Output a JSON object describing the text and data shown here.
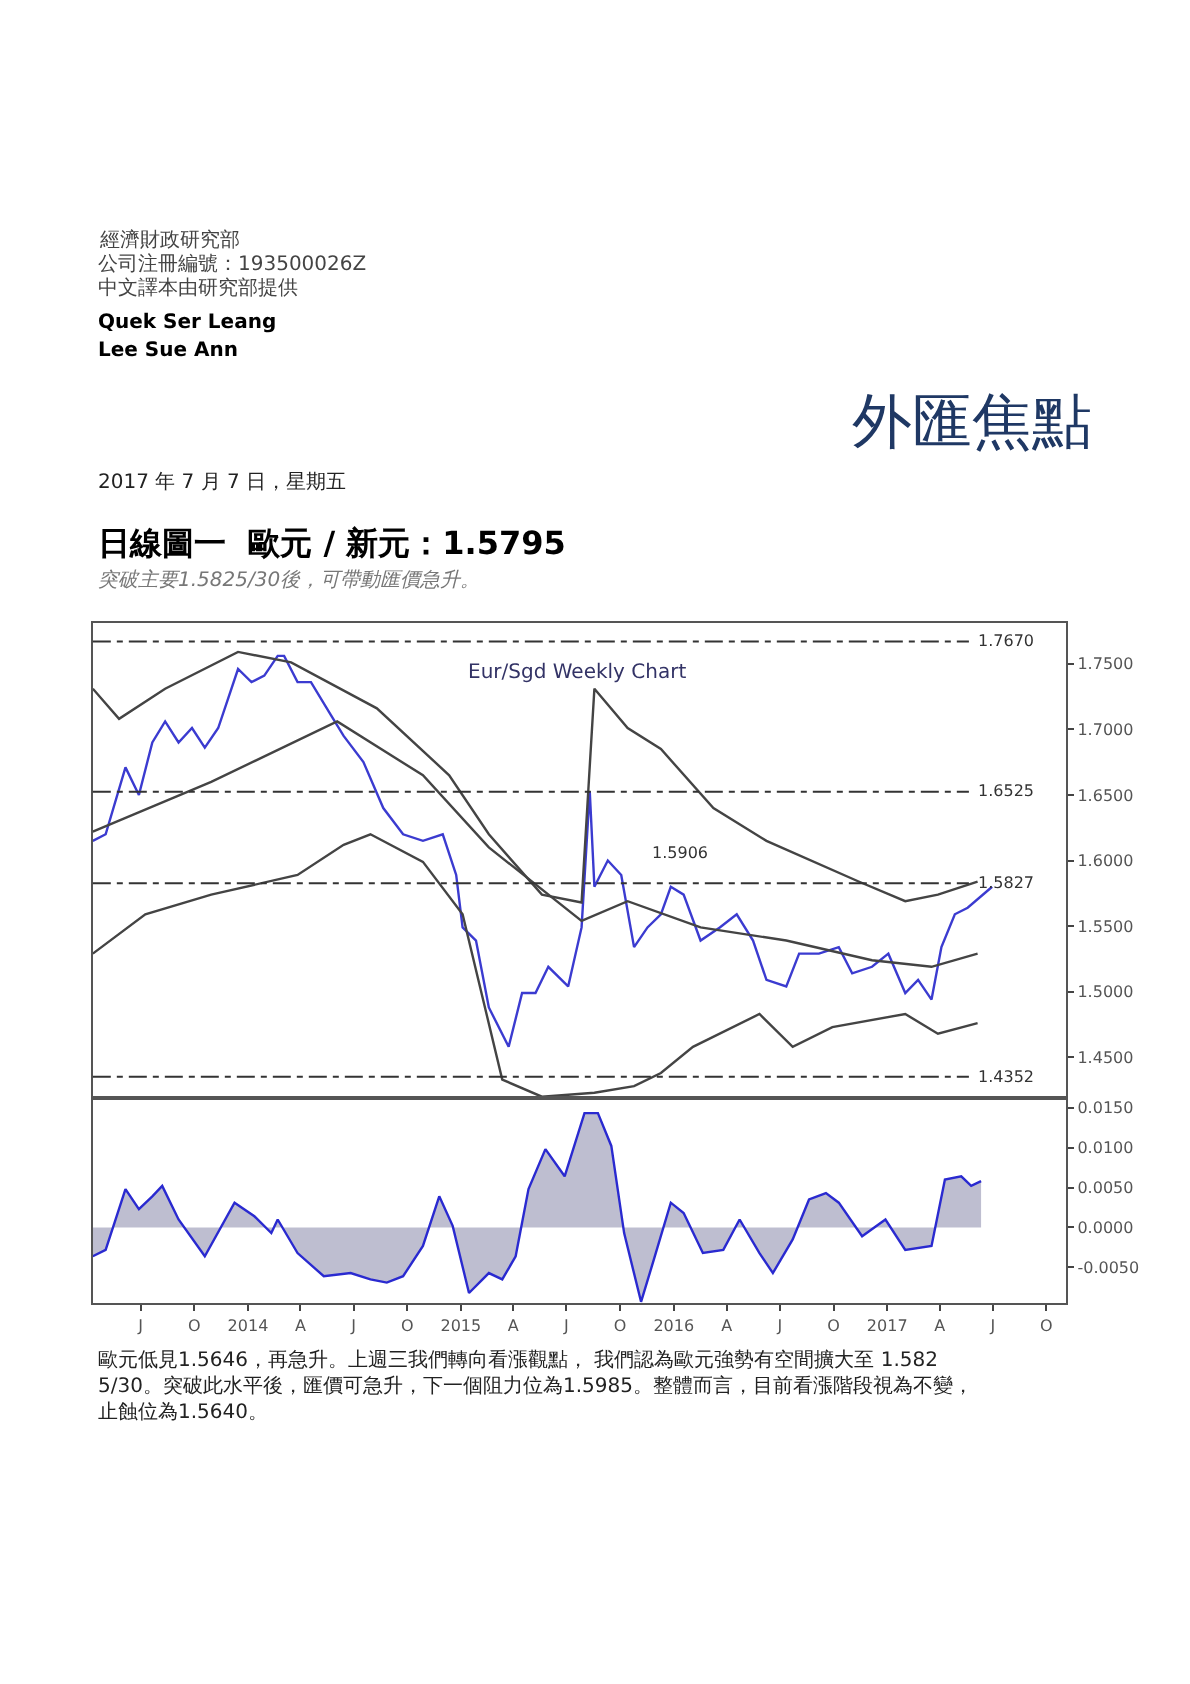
{
  "chart_data": [
    {
      "type": "line",
      "title": "日線圖一  歐元 / 新元：1.5795",
      "subtitle": "突破主要1.5825/30後，可帶動匯價急升。",
      "annotations": [
        "經濟財政研究部",
        "公司注冊編號：193500026Z",
        "中文譯本由研究部提供",
        "Quek Ser Leang",
        "Lee Sue Ann",
        "外匯焦點",
        "2017 年 7 月 7 日，星期五",
        "Eur/Sgd Weekly Chart",
        "歐元低見1.5646，再急升。上週三我們轉向看漲觀點， 我們認為歐元強勢有空間擴大至 1.5825/30。突破此水平後，匯價可急升，下一個阻力位為1.5985。整體而言，目前看漲階段視為不變，止蝕位為1.5640。",
        "1.5906"
      ],
      "series": [
        {
          "color": "#3b3bd0",
          "x": [
            "2013-04-10",
            "2013-05-02",
            "2013-06-05",
            "2013-06-28",
            "2013-07-21",
            "2013-08-12",
            "2013-09-04",
            "2013-09-27",
            "2013-10-19",
            "2013-11-11",
            "2013-12-15",
            "2014-01-07",
            "2014-01-29",
            "2014-02-21",
            "2014-03-04",
            "2014-03-27",
            "2014-04-19",
            "2014-05-23",
            "2014-06-14",
            "2014-07-18",
            "2014-08-21",
            "2014-09-24",
            "2014-10-28",
            "2014-12-01",
            "2014-12-24",
            "2015-01-04",
            "2015-01-27",
            "2015-02-18",
            "2015-03-24",
            "2015-04-16",
            "2015-05-09",
            "2015-05-31",
            "2015-07-04",
            "2015-07-27",
            "2015-08-10",
            "2015-08-18",
            "2015-09-10",
            "2015-10-03",
            "2015-10-25",
            "2015-11-17",
            "2015-12-10",
            "2015-12-27",
            "2016-01-18",
            "2016-02-16",
            "2016-03-20",
            "2016-04-18",
            "2016-05-16",
            "2016-06-08",
            "2016-07-12",
            "2016-08-03",
            "2016-09-06",
            "2016-10-10",
            "2016-11-02",
            "2016-12-06",
            "2017-01-03",
            "2017-02-01",
            "2017-02-23",
            "2017-03-18",
            "2017-04-04",
            "2017-04-27",
            "2017-05-19",
            "2017-06-30"
          ],
          "values": [
            1.615,
            1.62,
            1.671,
            1.65,
            1.69,
            1.706,
            1.69,
            1.701,
            1.686,
            1.701,
            1.746,
            1.736,
            1.741,
            1.756,
            1.756,
            1.736,
            1.736,
            1.711,
            1.695,
            1.675,
            1.64,
            1.62,
            1.615,
            1.62,
            1.589,
            1.549,
            1.539,
            1.488,
            1.458,
            1.499,
            1.499,
            1.519,
            1.504,
            1.549,
            1.653,
            1.58,
            1.6,
            1.589,
            1.534,
            1.549,
            1.559,
            1.58,
            1.574,
            1.539,
            1.549,
            1.559,
            1.539,
            1.509,
            1.504,
            1.529,
            1.529,
            1.534,
            1.514,
            1.519,
            1.529,
            1.499,
            1.509,
            1.494,
            1.534,
            1.559,
            1.564,
            1.58
          ]
        },
        {
          "color": "#444444",
          "x": [
            "2013-04-10",
            "2013-05-25",
            "2013-08-12",
            "2013-12-15",
            "2014-03-16",
            "2014-08-10",
            "2014-12-12",
            "2015-02-18",
            "2015-05-20",
            "2015-07-27",
            "2015-08-18",
            "2015-10-14",
            "2015-12-10",
            "2016-03-09",
            "2016-06-08",
            "2016-11-13",
            "2017-02-01",
            "2017-03-29",
            "2017-06-05"
          ],
          "values": [
            1.731,
            1.708,
            1.731,
            1.759,
            1.751,
            1.716,
            1.665,
            1.62,
            1.574,
            1.568,
            1.731,
            1.701,
            1.685,
            1.64,
            1.615,
            1.584,
            1.569,
            1.574,
            1.584
          ]
        },
        {
          "color": "#444444",
          "x": [
            "2013-04-10",
            "2013-10-30",
            "2014-06-03",
            "2014-10-28",
            "2015-02-18",
            "2015-07-27",
            "2015-10-14",
            "2016-02-16",
            "2016-07-12",
            "2016-12-06",
            "2017-03-18",
            "2017-06-05"
          ],
          "values": [
            1.622,
            1.66,
            1.706,
            1.665,
            1.61,
            1.554,
            1.569,
            1.549,
            1.539,
            1.524,
            1.519,
            1.529
          ]
        },
        {
          "color": "#444444",
          "x": [
            "2013-04-10",
            "2013-07-09",
            "2013-10-30",
            "2014-03-27",
            "2014-06-14",
            "2014-07-30",
            "2014-10-28",
            "2015-01-04",
            "2015-03-13",
            "2015-05-20",
            "2015-08-18",
            "2015-10-25",
            "2015-12-10",
            "2016-02-03",
            "2016-05-27",
            "2016-07-23",
            "2016-09-29",
            "2017-02-01",
            "2017-03-29",
            "2017-06-05"
          ],
          "values": [
            1.529,
            1.559,
            1.574,
            1.589,
            1.612,
            1.62,
            1.599,
            1.559,
            1.433,
            1.42,
            1.423,
            1.428,
            1.438,
            1.458,
            1.483,
            1.458,
            1.473,
            1.483,
            1.468,
            1.476
          ]
        }
      ],
      "ref_lines": [
        {
          "axis": "y",
          "value": 1.767,
          "label": "1.7670",
          "color": "#333333",
          "line_style": "dashed"
        },
        {
          "axis": "y",
          "value": 1.6525,
          "label": "1.6525",
          "color": "#333333",
          "line_style": "dashed"
        },
        {
          "axis": "y",
          "value": 1.5827,
          "label": "1.5827",
          "color": "#333333",
          "line_style": "dashed"
        },
        {
          "axis": "y",
          "value": 1.4352,
          "label": "1.4352",
          "color": "#333333",
          "line_style": "dashed"
        }
      ],
      "xlim": [
        "2013-04-10",
        "2017-11-04"
      ],
      "ylim": [
        1.419,
        1.781
      ],
      "yticks": [
        {
          "value": 1.45,
          "label": "1.4500"
        },
        {
          "value": 1.5,
          "label": "1.5000"
        },
        {
          "value": 1.55,
          "label": "1.5500"
        },
        {
          "value": 1.6,
          "label": "1.6000"
        },
        {
          "value": 1.65,
          "label": "1.6500"
        },
        {
          "value": 1.7,
          "label": "1.7000"
        },
        {
          "value": 1.75,
          "label": "1.7500"
        }
      ],
      "tick_labels": "y",
      "line_style": "solid"
    },
    {
      "type": "area",
      "series": [
        {
          "color": "#2a2ad0",
          "x": [
            "2013-04-10",
            "2013-05-02",
            "2013-06-05",
            "2013-06-28",
            "2013-07-21",
            "2013-08-07",
            "2013-09-04",
            "2013-10-19",
            "2013-12-09",
            "2014-01-12",
            "2014-02-10",
            "2014-02-21",
            "2014-03-27",
            "2014-05-11",
            "2014-06-26",
            "2014-07-30",
            "2014-08-27",
            "2014-09-24",
            "2014-10-28",
            "2014-11-25",
            "2014-12-18",
            "2015-01-15",
            "2015-02-18",
            "2015-03-13",
            "2015-04-05",
            "2015-04-27",
            "2015-05-26",
            "2015-06-28",
            "2015-08-01",
            "2015-08-24",
            "2015-09-16",
            "2015-10-08",
            "2015-11-06",
            "2015-11-28",
            "2015-12-27",
            "2016-01-18",
            "2016-02-20",
            "2016-03-26",
            "2016-04-23",
            "2016-05-27",
            "2016-06-19",
            "2016-07-23",
            "2016-08-20",
            "2016-09-18",
            "2016-10-10",
            "2016-11-19",
            "2016-12-29",
            "2017-02-01",
            "2017-03-18",
            "2017-04-10",
            "2017-05-08",
            "2017-05-25",
            "2017-06-11"
          ],
          "values": [
            -0.0036,
            -0.0028,
            0.0048,
            0.0023,
            0.0039,
            0.0052,
            0.001,
            -0.0036,
            0.0031,
            0.0014,
            -0.0007,
            0.001,
            -0.0032,
            -0.0061,
            -0.0057,
            -0.0065,
            -0.0069,
            -0.0061,
            -0.0023,
            0.0039,
            0.0002,
            -0.0082,
            -0.0057,
            -0.0065,
            -0.0036,
            0.0048,
            0.0098,
            0.0064,
            0.0143,
            0.0143,
            0.0102,
            -0.0007,
            -0.0093,
            -0.004,
            0.0031,
            0.0018,
            -0.0032,
            -0.0028,
            0.001,
            -0.0032,
            -0.0057,
            -0.0015,
            0.0035,
            0.0043,
            0.0031,
            -0.0011,
            0.001,
            -0.0028,
            -0.0023,
            0.006,
            0.0064,
            0.0052,
            0.0058
          ]
        }
      ],
      "xlim": [
        "2013-04-10",
        "2017-11-04"
      ],
      "ylim": [
        -0.0095,
        0.0162
      ],
      "xticks": [
        {
          "value": "2013-07-01",
          "label": "J"
        },
        {
          "value": "2013-10-01",
          "label": "O"
        },
        {
          "value": "2014-01-01",
          "label": "2014"
        },
        {
          "value": "2014-04-01",
          "label": "A"
        },
        {
          "value": "2014-07-01",
          "label": "J"
        },
        {
          "value": "2014-10-01",
          "label": "O"
        },
        {
          "value": "2015-01-01",
          "label": "2015"
        },
        {
          "value": "2015-04-01",
          "label": "A"
        },
        {
          "value": "2015-07-01",
          "label": "J"
        },
        {
          "value": "2015-10-01",
          "label": "O"
        },
        {
          "value": "2016-01-01",
          "label": "2016"
        },
        {
          "value": "2016-04-01",
          "label": "A"
        },
        {
          "value": "2016-07-01",
          "label": "J"
        },
        {
          "value": "2016-10-01",
          "label": "O"
        },
        {
          "value": "2017-01-01",
          "label": "2017"
        },
        {
          "value": "2017-04-01",
          "label": "A"
        },
        {
          "value": "2017-07-01",
          "label": "J"
        },
        {
          "value": "2017-10-01",
          "label": "O"
        }
      ],
      "yticks": [
        {
          "value": -0.005,
          "label": "-0.0050"
        },
        {
          "value": 0,
          "label": "0.0000"
        },
        {
          "value": 0.005,
          "label": "0.0050"
        },
        {
          "value": 0.01,
          "label": "0.0100"
        },
        {
          "value": 0.015,
          "label": "0.0150"
        }
      ],
      "line_style": "solid"
    }
  ]
}
